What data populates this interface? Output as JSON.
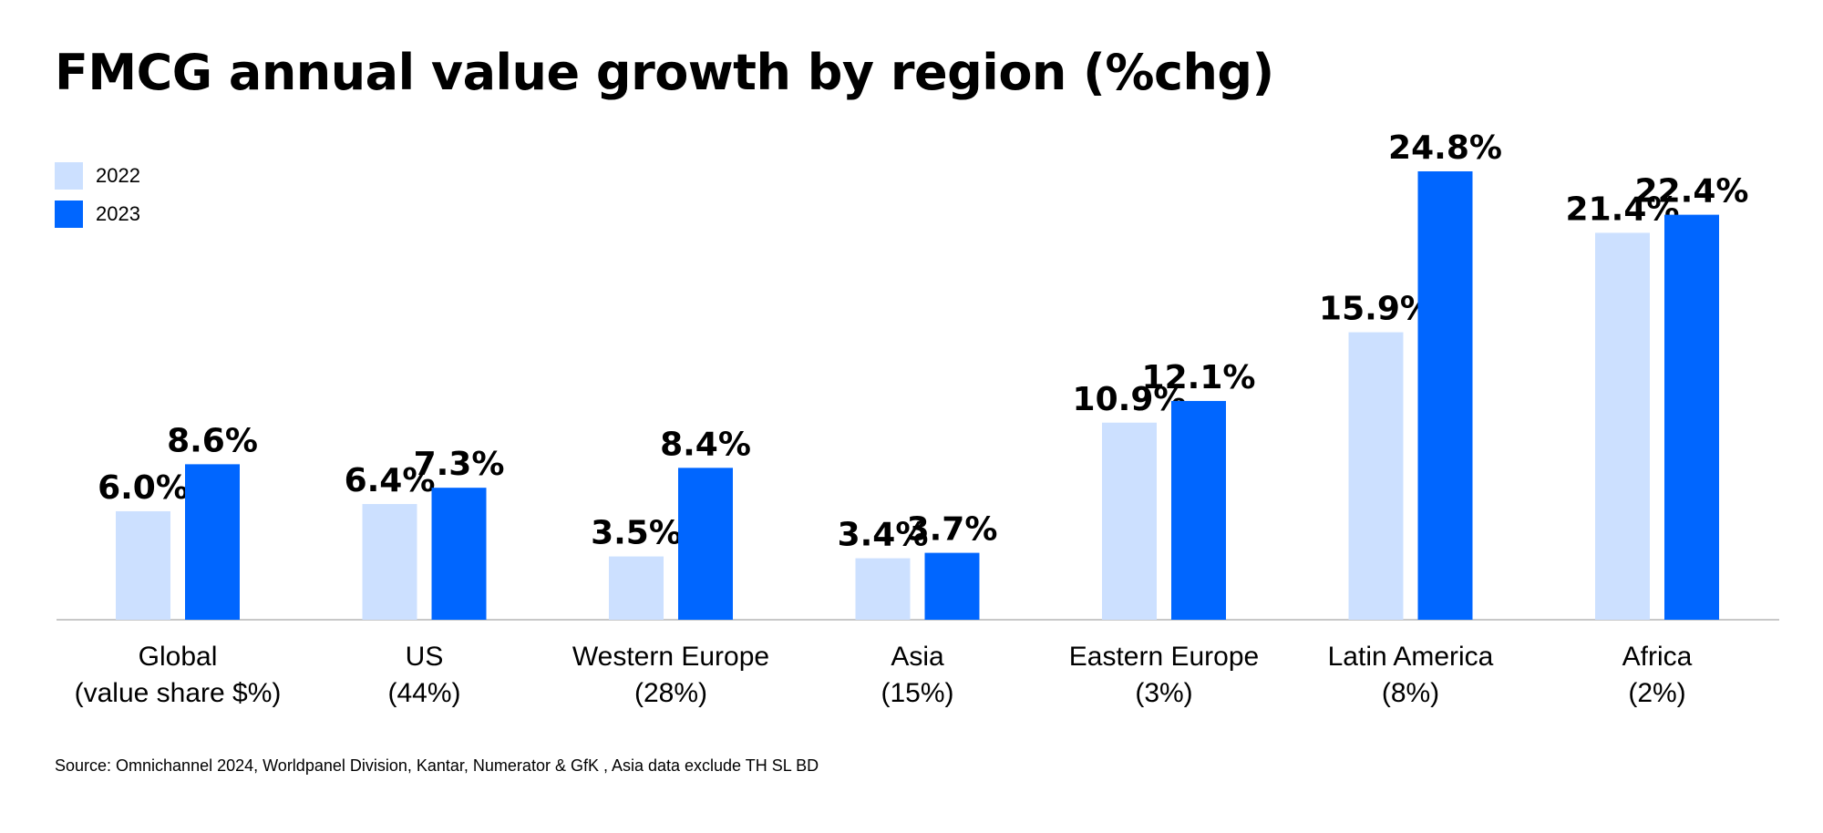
{
  "title": "FMCG annual value growth by region (%chg)",
  "source": "Source: Omnichannel 2024, Worldpanel Division, Kantar, Numerator & GfK , Asia data exclude TH SL BD",
  "colors": {
    "series_2022": "#cce0ff",
    "series_2023": "#0066ff",
    "axis": "#c8c8c8",
    "text": "#000000"
  },
  "chart_data": {
    "type": "bar",
    "title": "FMCG annual value growth by region (%chg)",
    "categories": [
      [
        "Global",
        "(value share $%)"
      ],
      [
        "US",
        "(44%)"
      ],
      [
        "Western Europe",
        "(28%)"
      ],
      [
        "Asia",
        "(15%)"
      ],
      [
        "Eastern Europe",
        "(3%)"
      ],
      [
        "Latin America",
        "(8%)"
      ],
      [
        "Africa",
        "(2%)"
      ]
    ],
    "series": [
      {
        "name": "2022",
        "values": [
          6.0,
          6.4,
          3.5,
          3.4,
          10.9,
          15.9,
          21.4
        ],
        "labels": [
          "6.0%",
          "6.4%",
          "3.5%",
          "3.4%",
          "10.9%",
          "15.9%",
          "21.4%"
        ]
      },
      {
        "name": "2023",
        "values": [
          8.6,
          7.3,
          8.4,
          3.7,
          12.1,
          24.8,
          22.4
        ],
        "labels": [
          "8.6%",
          "7.3%",
          "8.4%",
          "3.7%",
          "12.1%",
          "24.8%",
          "22.4%"
        ]
      }
    ],
    "ylim": [
      0,
      25
    ],
    "grid": false,
    "legend": "top-left"
  }
}
